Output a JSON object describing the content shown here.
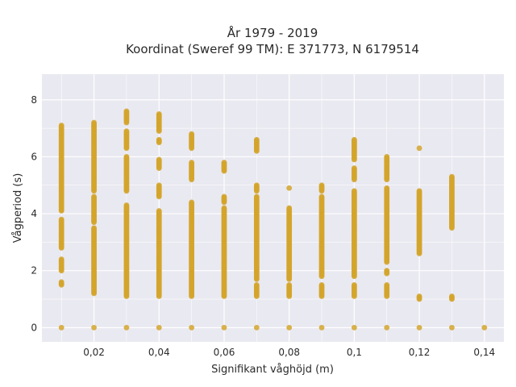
{
  "chart_data": {
    "type": "scatter",
    "title": "År 1979 - 2019",
    "subtitle": "Koordinat (Sweref 99 TM): E 371773, N 6179514",
    "xlabel": "Signifikant våghöjd (m)",
    "ylabel": "Vågperiod (s)",
    "xlim": [
      0.004,
      0.146
    ],
    "ylim": [
      -0.5,
      8.9
    ],
    "grid": true,
    "legend": "none",
    "x_ticks": [
      {
        "value": 0.02,
        "label": "0,02"
      },
      {
        "value": 0.04,
        "label": "0,04"
      },
      {
        "value": 0.06,
        "label": "0,06"
      },
      {
        "value": 0.08,
        "label": "0,08"
      },
      {
        "value": 0.1,
        "label": "0,1"
      },
      {
        "value": 0.12,
        "label": "0,12"
      },
      {
        "value": 0.14,
        "label": "0,14"
      }
    ],
    "y_ticks": [
      {
        "value": 0,
        "label": "0"
      },
      {
        "value": 2,
        "label": "2"
      },
      {
        "value": 4,
        "label": "4"
      },
      {
        "value": 6,
        "label": "6"
      },
      {
        "value": 8,
        "label": "8"
      }
    ],
    "colors": {
      "point": "#d4a52b",
      "plot_background": "#e9e9f1",
      "grid": "#ffffff"
    },
    "columns": [
      {
        "x": 0.01,
        "ranges": [
          [
            0,
            0
          ],
          [
            1.5,
            1.6
          ],
          [
            2.0,
            2.4
          ],
          [
            2.8,
            3.8
          ],
          [
            4.1,
            7.1
          ]
        ]
      },
      {
        "x": 0.02,
        "ranges": [
          [
            0,
            0
          ],
          [
            1.2,
            3.5
          ],
          [
            3.7,
            4.6
          ],
          [
            4.8,
            7.2
          ]
        ]
      },
      {
        "x": 0.03,
        "ranges": [
          [
            0,
            0
          ],
          [
            1.1,
            4.3
          ],
          [
            4.8,
            6.0
          ],
          [
            6.3,
            6.9
          ],
          [
            7.2,
            7.6
          ]
        ]
      },
      {
        "x": 0.04,
        "ranges": [
          [
            0,
            0
          ],
          [
            1.1,
            4.1
          ],
          [
            4.6,
            5.0
          ],
          [
            5.6,
            5.9
          ],
          [
            6.5,
            6.6
          ],
          [
            6.9,
            7.5
          ]
        ]
      },
      {
        "x": 0.05,
        "ranges": [
          [
            0,
            0
          ],
          [
            1.1,
            4.4
          ],
          [
            5.2,
            5.8
          ],
          [
            6.3,
            6.8
          ]
        ]
      },
      {
        "x": 0.06,
        "ranges": [
          [
            0,
            0
          ],
          [
            1.1,
            4.2
          ],
          [
            4.4,
            4.6
          ],
          [
            5.5,
            5.8
          ]
        ]
      },
      {
        "x": 0.07,
        "ranges": [
          [
            0,
            0
          ],
          [
            1.1,
            1.5
          ],
          [
            1.7,
            4.6
          ],
          [
            4.8,
            5.0
          ],
          [
            6.2,
            6.6
          ]
        ]
      },
      {
        "x": 0.08,
        "ranges": [
          [
            0,
            0
          ],
          [
            1.1,
            1.5
          ],
          [
            1.7,
            4.2
          ],
          [
            4.9,
            4.9
          ]
        ]
      },
      {
        "x": 0.09,
        "ranges": [
          [
            0,
            0
          ],
          [
            1.1,
            1.5
          ],
          [
            1.8,
            4.6
          ],
          [
            4.8,
            5.0
          ]
        ]
      },
      {
        "x": 0.1,
        "ranges": [
          [
            0,
            0
          ],
          [
            1.1,
            1.5
          ],
          [
            1.8,
            4.8
          ],
          [
            5.2,
            5.6
          ],
          [
            5.9,
            6.6
          ]
        ]
      },
      {
        "x": 0.11,
        "ranges": [
          [
            0,
            0
          ],
          [
            1.1,
            1.5
          ],
          [
            1.9,
            2.0
          ],
          [
            2.3,
            4.9
          ],
          [
            5.2,
            6.0
          ]
        ]
      },
      {
        "x": 0.12,
        "ranges": [
          [
            0,
            0
          ],
          [
            1.0,
            1.1
          ],
          [
            2.6,
            4.8
          ],
          [
            6.3,
            6.3
          ]
        ]
      },
      {
        "x": 0.13,
        "ranges": [
          [
            0,
            0
          ],
          [
            1.0,
            1.1
          ],
          [
            3.5,
            5.3
          ]
        ]
      },
      {
        "x": 0.14,
        "ranges": [
          [
            0,
            0
          ]
        ]
      }
    ]
  }
}
